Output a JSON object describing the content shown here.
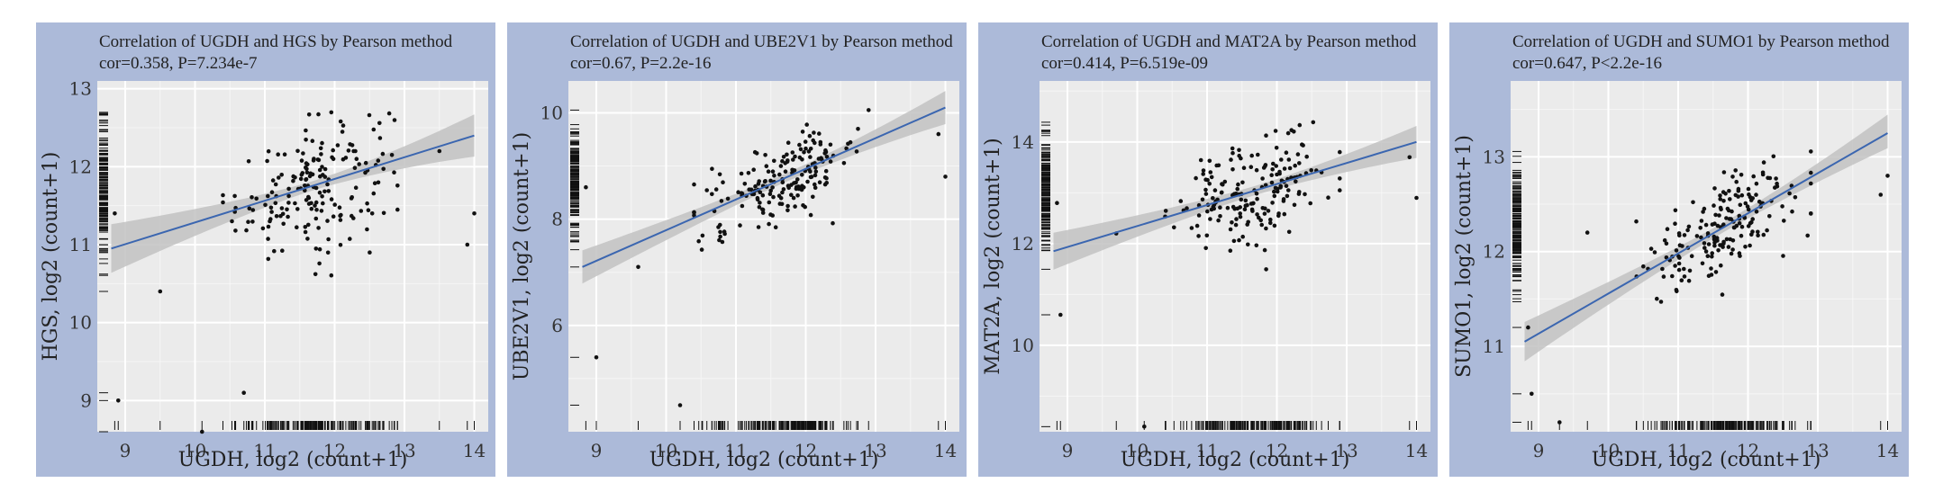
{
  "chart_data": [
    {
      "type": "scatter",
      "title": "Correlation of UGDH and HGS by Pearson method",
      "subtitle": "cor=0.358, P=7.234e-7",
      "xlabel": "UGDH,  log2 (count+1)",
      "ylabel": "HGS, log2 (count+1)",
      "xlim": [
        8.6,
        14.2
      ],
      "ylim": [
        8.6,
        13.1
      ],
      "xticks": [
        9,
        10,
        11,
        12,
        13,
        14
      ],
      "yticks": [
        9,
        10,
        11,
        12,
        13
      ],
      "fit": {
        "x": [
          8.8,
          14.0
        ],
        "y": [
          10.95,
          12.4
        ]
      },
      "band": {
        "lower": [
          10.65,
          12.05
        ],
        "upper": [
          11.25,
          12.75
        ],
        "mid": 11.7,
        "mid_half": 0.06
      },
      "cor": 0.358,
      "outliers": [
        [
          8.9,
          9.0
        ],
        [
          10.1,
          8.6
        ],
        [
          10.7,
          9.1
        ],
        [
          13.9,
          11.0
        ],
        [
          14.0,
          11.4
        ],
        [
          9.5,
          10.4
        ],
        [
          13.5,
          12.2
        ],
        [
          8.85,
          11.4
        ]
      ],
      "n_points": 185
    },
    {
      "type": "scatter",
      "title": "Correlation of UGDH and UBE2V1 by Pearson method",
      "subtitle": "cor=0.67, P=2.2e-16",
      "xlabel": "UGDH,  log2 (count+1)",
      "ylabel": "UBE2V1, log2 (count+1)",
      "xlim": [
        8.6,
        14.2
      ],
      "ylim": [
        4.0,
        10.6
      ],
      "xticks": [
        9,
        10,
        11,
        12,
        13,
        14
      ],
      "yticks": [
        6,
        8,
        10
      ],
      "fit": {
        "x": [
          8.8,
          14.0
        ],
        "y": [
          7.1,
          10.1
        ]
      },
      "band": {
        "lower": [
          6.8,
          9.7
        ],
        "upper": [
          7.4,
          10.5
        ],
        "mid": 11.7,
        "mid_half": 0.08
      },
      "cor": 0.67,
      "outliers": [
        [
          9.0,
          5.4
        ],
        [
          10.2,
          4.5
        ],
        [
          13.9,
          9.6
        ],
        [
          14.0,
          8.8
        ],
        [
          8.85,
          8.6
        ],
        [
          9.6,
          7.1
        ]
      ],
      "n_points": 185
    },
    {
      "type": "scatter",
      "title": "Correlation of UGDH and MAT2A by Pearson method",
      "subtitle": "cor=0.414, P=6.519e-09",
      "xlabel": "UGDH,  log2 (count+1)",
      "ylabel": "MAT2A, log2 (count+1)",
      "xlim": [
        8.6,
        14.2
      ],
      "ylim": [
        8.3,
        15.2
      ],
      "xticks": [
        9,
        10,
        11,
        12,
        13,
        14
      ],
      "yticks": [
        10,
        12,
        14
      ],
      "fit": {
        "x": [
          8.8,
          14.0
        ],
        "y": [
          11.85,
          14.0
        ]
      },
      "band": {
        "lower": [
          11.5,
          13.6
        ],
        "upper": [
          12.2,
          14.4
        ],
        "mid": 11.7,
        "mid_half": 0.09
      },
      "cor": 0.414,
      "outliers": [
        [
          8.9,
          10.6
        ],
        [
          10.1,
          8.4
        ],
        [
          13.9,
          13.7
        ],
        [
          14.0,
          12.9
        ],
        [
          8.85,
          12.8
        ],
        [
          9.7,
          12.2
        ]
      ],
      "n_points": 185
    },
    {
      "type": "scatter",
      "title": "Correlation of UGDH and SUMO1 by Pearson method",
      "subtitle": "cor=0.647, P<2.2e-16",
      "xlabel": "UGDH,  log2 (count+1)",
      "ylabel": "SUMO1, log2 (count+1)",
      "xlim": [
        8.6,
        14.2
      ],
      "ylim": [
        10.1,
        13.8
      ],
      "xticks": [
        9,
        10,
        11,
        12,
        13,
        14
      ],
      "yticks": [
        11,
        12,
        13
      ],
      "fit": {
        "x": [
          8.8,
          14.0
        ],
        "y": [
          11.05,
          13.25
        ]
      },
      "band": {
        "lower": [
          10.85,
          13.05
        ],
        "upper": [
          11.25,
          13.5
        ],
        "mid": 11.7,
        "mid_half": 0.05
      },
      "cor": 0.647,
      "outliers": [
        [
          8.9,
          10.5
        ],
        [
          9.3,
          10.2
        ],
        [
          13.9,
          12.6
        ],
        [
          14.0,
          12.8
        ],
        [
          8.85,
          11.2
        ],
        [
          9.7,
          12.2
        ]
      ],
      "n_points": 185
    }
  ],
  "colors": {
    "panel_bg": "#acbad9",
    "plot_bg": "#ebebeb",
    "grid": "#ffffff",
    "fit_line": "#3b66b0",
    "band": "#c2c2c2",
    "points": "#111111"
  }
}
